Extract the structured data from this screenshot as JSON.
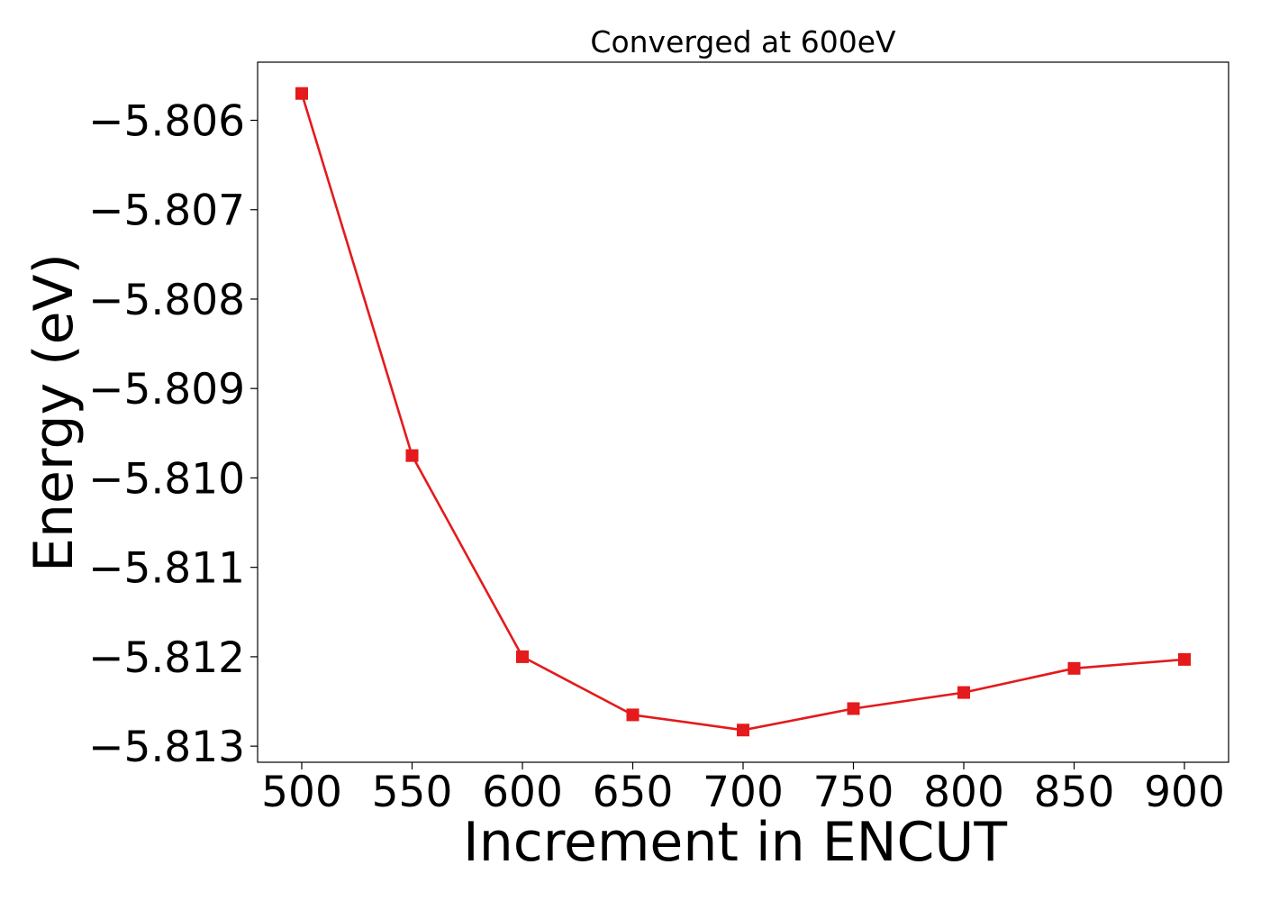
{
  "chart_data": {
    "type": "line",
    "title": "Converged at 600eV",
    "xlabel": "Increment in ENCUT",
    "ylabel": "Energy (eV)",
    "x": [
      500,
      550,
      600,
      650,
      700,
      750,
      800,
      850,
      900
    ],
    "series": [
      {
        "values": [
          -5.8057,
          -5.80975,
          -5.812,
          -5.81265,
          -5.81282,
          -5.81258,
          -5.8124,
          -5.81213,
          -5.81203
        ],
        "color": "#e41a1c",
        "marker": "square"
      }
    ],
    "xticks": [
      500,
      550,
      600,
      650,
      700,
      750,
      800,
      850,
      900
    ],
    "xtick_labels": [
      "500",
      "550",
      "600",
      "650",
      "700",
      "750",
      "800",
      "850",
      "900"
    ],
    "yticks": [
      -5.806,
      -5.807,
      -5.808,
      -5.809,
      -5.81,
      -5.811,
      -5.812,
      -5.813
    ],
    "ytick_labels": [
      "−5.806",
      "−5.807",
      "−5.808",
      "−5.809",
      "−5.810",
      "−5.811",
      "−5.812",
      "−5.813"
    ],
    "xlim": [
      480,
      920
    ],
    "ylim": [
      -5.81318,
      -5.80535
    ],
    "grid": false,
    "legend": "none"
  }
}
